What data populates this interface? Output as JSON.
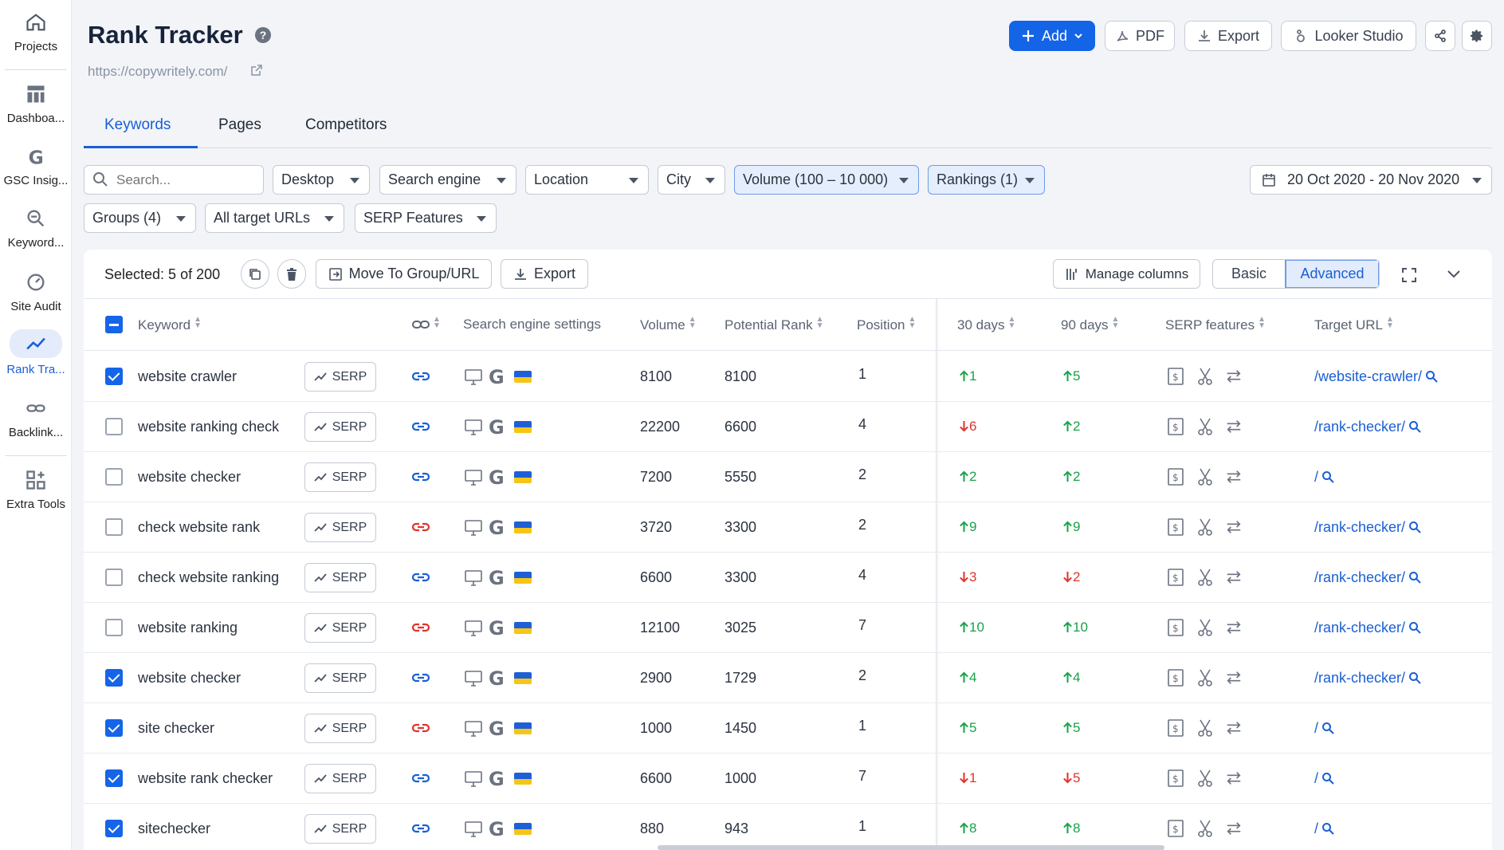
{
  "sidebar": {
    "items": [
      {
        "label": "Projects",
        "icon": "home-icon"
      },
      {
        "label": "Dashboa...",
        "icon": "dashboard-icon"
      },
      {
        "label": "GSC Insig...",
        "icon": "google-icon"
      },
      {
        "label": "Keyword...",
        "icon": "keyword-search-icon"
      },
      {
        "label": "Site Audit",
        "icon": "speedometer-icon"
      },
      {
        "label": "Rank Tra...",
        "icon": "trend-icon"
      },
      {
        "label": "Backlink...",
        "icon": "link-icon"
      },
      {
        "label": "Extra Tools",
        "icon": "grid-plus-icon"
      }
    ]
  },
  "header": {
    "title": "Rank Tracker",
    "help": "?",
    "url": "https://copywritely.com/",
    "add_label": "Add",
    "pdf_label": "PDF",
    "export_label": "Export",
    "looker_label": "Looker Studio"
  },
  "tabs": [
    {
      "label": "Keywords"
    },
    {
      "label": "Pages"
    },
    {
      "label": "Competitors"
    }
  ],
  "filters": {
    "search_placeholder": "Search...",
    "device": "Desktop",
    "search_engine": "Search engine",
    "location": "Location",
    "city": "City",
    "volume": "Volume (100 – 10 000)",
    "rankings": "Rankings (1)",
    "date_range": "20 Oct 2020 - 20 Nov 2020",
    "groups": "Groups (4)",
    "target_urls": "All target URLs",
    "serp_features": "SERP Features"
  },
  "toolbar": {
    "selected": "Selected: 5 of 200",
    "move_label": "Move To Group/URL",
    "export_label": "Export",
    "manage_columns": "Manage columns",
    "basic": "Basic",
    "advanced": "Advanced"
  },
  "columns": {
    "keyword": "Keyword",
    "search_engine_settings": "Search engine settings",
    "volume": "Volume",
    "potential_rank": "Potential Rank",
    "position": "Position",
    "d30": "30 days",
    "d90": "90 days",
    "serp_features": "SERP features",
    "target_url": "Target URL"
  },
  "serp_label": "SERP",
  "rows": [
    {
      "checked": true,
      "keyword": "website crawler",
      "link_color": "#1a5fd6",
      "volume": "8100",
      "potential": "8100",
      "position": "1",
      "d30": "1",
      "d30_dir": "up",
      "d90": "5",
      "d90_dir": "up",
      "url": "/website-crawler/"
    },
    {
      "checked": false,
      "keyword": "website ranking check",
      "link_color": "#1a5fd6",
      "volume": "22200",
      "potential": "6600",
      "position": "4",
      "d30": "6",
      "d30_dir": "down",
      "d90": "2",
      "d90_dir": "up",
      "url": "/rank-checker/"
    },
    {
      "checked": false,
      "keyword": "website checker",
      "link_color": "#1a5fd6",
      "volume": "7200",
      "potential": "5550",
      "position": "2",
      "d30": "2",
      "d30_dir": "up",
      "d90": "2",
      "d90_dir": "up",
      "url": "/"
    },
    {
      "checked": false,
      "keyword": "check website rank",
      "link_color": "#e0342c",
      "volume": "3720",
      "potential": "3300",
      "position": "2",
      "d30": "9",
      "d30_dir": "up",
      "d90": "9",
      "d90_dir": "up",
      "url": "/rank-checker/"
    },
    {
      "checked": false,
      "keyword": "check website ranking",
      "link_color": "#1a5fd6",
      "volume": "6600",
      "potential": "3300",
      "position": "4",
      "d30": "3",
      "d30_dir": "down",
      "d90": "2",
      "d90_dir": "down",
      "url": "/rank-checker/"
    },
    {
      "checked": false,
      "keyword": "website ranking",
      "link_color": "#e0342c",
      "volume": "12100",
      "potential": "3025",
      "position": "7",
      "d30": "10",
      "d30_dir": "up",
      "d90": "10",
      "d90_dir": "up",
      "url": "/rank-checker/"
    },
    {
      "checked": true,
      "keyword": "website checker",
      "link_color": "#1a5fd6",
      "volume": "2900",
      "potential": "1729",
      "position": "2",
      "d30": "4",
      "d30_dir": "up",
      "d90": "4",
      "d90_dir": "up",
      "url": "/rank-checker/"
    },
    {
      "checked": true,
      "keyword": "site checker",
      "link_color": "#e0342c",
      "volume": "1000",
      "potential": "1450",
      "position": "1",
      "d30": "5",
      "d30_dir": "up",
      "d90": "5",
      "d90_dir": "up",
      "url": "/"
    },
    {
      "checked": true,
      "keyword": "website rank checker",
      "link_color": "#1a5fd6",
      "volume": "6600",
      "potential": "1000",
      "position": "7",
      "d30": "1",
      "d30_dir": "down",
      "d90": "5",
      "d90_dir": "down",
      "url": "/"
    },
    {
      "checked": true,
      "keyword": "sitechecker",
      "link_color": "#1a5fd6",
      "volume": "880",
      "potential": "943",
      "position": "1",
      "d30": "8",
      "d30_dir": "up",
      "d90": "8",
      "d90_dir": "up",
      "url": "/"
    }
  ]
}
